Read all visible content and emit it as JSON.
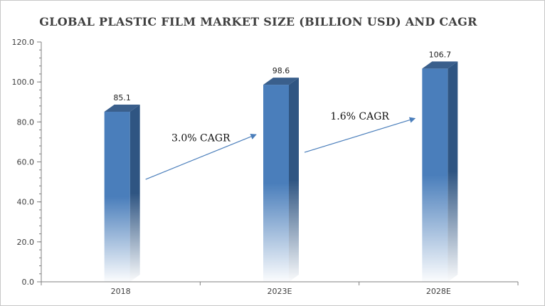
{
  "chart_data": {
    "type": "bar",
    "title": "GLOBAL PLASTIC FILM MARKET SIZE  (BILLION USD) AND CAGR",
    "categories": [
      "2018",
      "2023E",
      "2028E"
    ],
    "values": [
      85.1,
      98.6,
      106.7
    ],
    "value_labels": [
      "85.1",
      "98.6",
      "106.7"
    ],
    "ylim": [
      0,
      120
    ],
    "yticks": [
      0,
      20,
      40,
      60,
      80,
      100,
      120
    ],
    "ytick_labels": [
      "0.0",
      "20.0",
      "40.0",
      "60.0",
      "80.0",
      "100.0",
      "120.0"
    ],
    "xlabel": "",
    "ylabel": "",
    "grid": false,
    "annotations": [
      {
        "text": "3.0% CAGR",
        "from": "2018",
        "to": "2023E"
      },
      {
        "text": "1.6% CAGR",
        "from": "2023E",
        "to": "2028E"
      }
    ],
    "colors": {
      "bar_front": "#4a7ebb",
      "bar_side": "#2f5582",
      "bar_top": "#3a5f8c",
      "arrow": "#4a7ebb",
      "axis": "#808080"
    }
  }
}
